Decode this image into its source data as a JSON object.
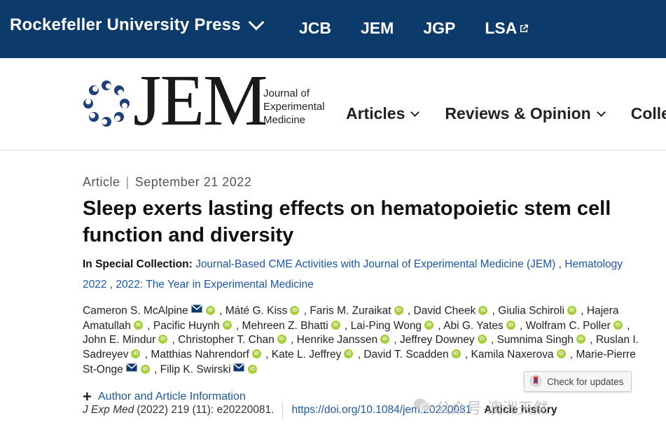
{
  "topbar": {
    "brand": "Rockefeller University Press",
    "journals": [
      "JCB",
      "JEM",
      "JGP",
      "LSA"
    ]
  },
  "logo": {
    "wordmark": "JEM",
    "subtitle_lines": [
      "Journal of",
      "Experimental",
      "Medicine"
    ]
  },
  "nav": {
    "items": [
      "Articles",
      "Reviews & Opinion",
      "Colle"
    ]
  },
  "article": {
    "type": "Article",
    "date": "September 21 2022",
    "title": "Sleep exerts lasting effects on hematopoietic stem cell function and diversity",
    "collection_label": "In Special Collection:",
    "collections": [
      "Journal-Based CME Activities with Journal of Experimental Medicine (JEM)",
      "Hematology 2022",
      "2022: The Year in Experimental Medicine"
    ],
    "authors": [
      {
        "name": "Cameron S. McAlpine",
        "mail": true
      },
      {
        "name": "Máté G. Kiss"
      },
      {
        "name": "Faris M. Zuraikat"
      },
      {
        "name": "David Cheek"
      },
      {
        "name": "Giulia Schiroli"
      },
      {
        "name": "Hajera Amatullah"
      },
      {
        "name": "Pacific Huynh"
      },
      {
        "name": "Mehreen Z. Bhatti"
      },
      {
        "name": "Lai-Ping Wong"
      },
      {
        "name": "Abi G. Yates"
      },
      {
        "name": "Wolfram C. Poller"
      },
      {
        "name": "John E. Mindur"
      },
      {
        "name": "Christopher T. Chan"
      },
      {
        "name": "Henrike Janssen"
      },
      {
        "name": "Jeffrey Downey"
      },
      {
        "name": "Sumnima Singh"
      },
      {
        "name": "Ruslan I. Sadreyev"
      },
      {
        "name": "Matthias Nahrendorf"
      },
      {
        "name": "Kate L. Jeffrey"
      },
      {
        "name": "David T. Scadden"
      },
      {
        "name": "Kamila Naxerova"
      },
      {
        "name": "Marie-Pierre St-Onge",
        "mail": true
      },
      {
        "name": "Filip K. Swirski",
        "mail": true
      }
    ],
    "author_info_label": "Author and Article Information",
    "citation_journal": "J Exp Med",
    "citation_rest": "(2022) 219 (11): e20220081.",
    "doi": "https://doi.org/10.1084/jem.20220081",
    "history_label": "Article history"
  },
  "check_updates": {
    "label": "Check for updates"
  },
  "watermark": {
    "text": "公众号·澳洲天然"
  },
  "colors": {
    "topbar": "#0b3a6b",
    "link": "#1c57a5",
    "orcid": "#a6ce39"
  }
}
